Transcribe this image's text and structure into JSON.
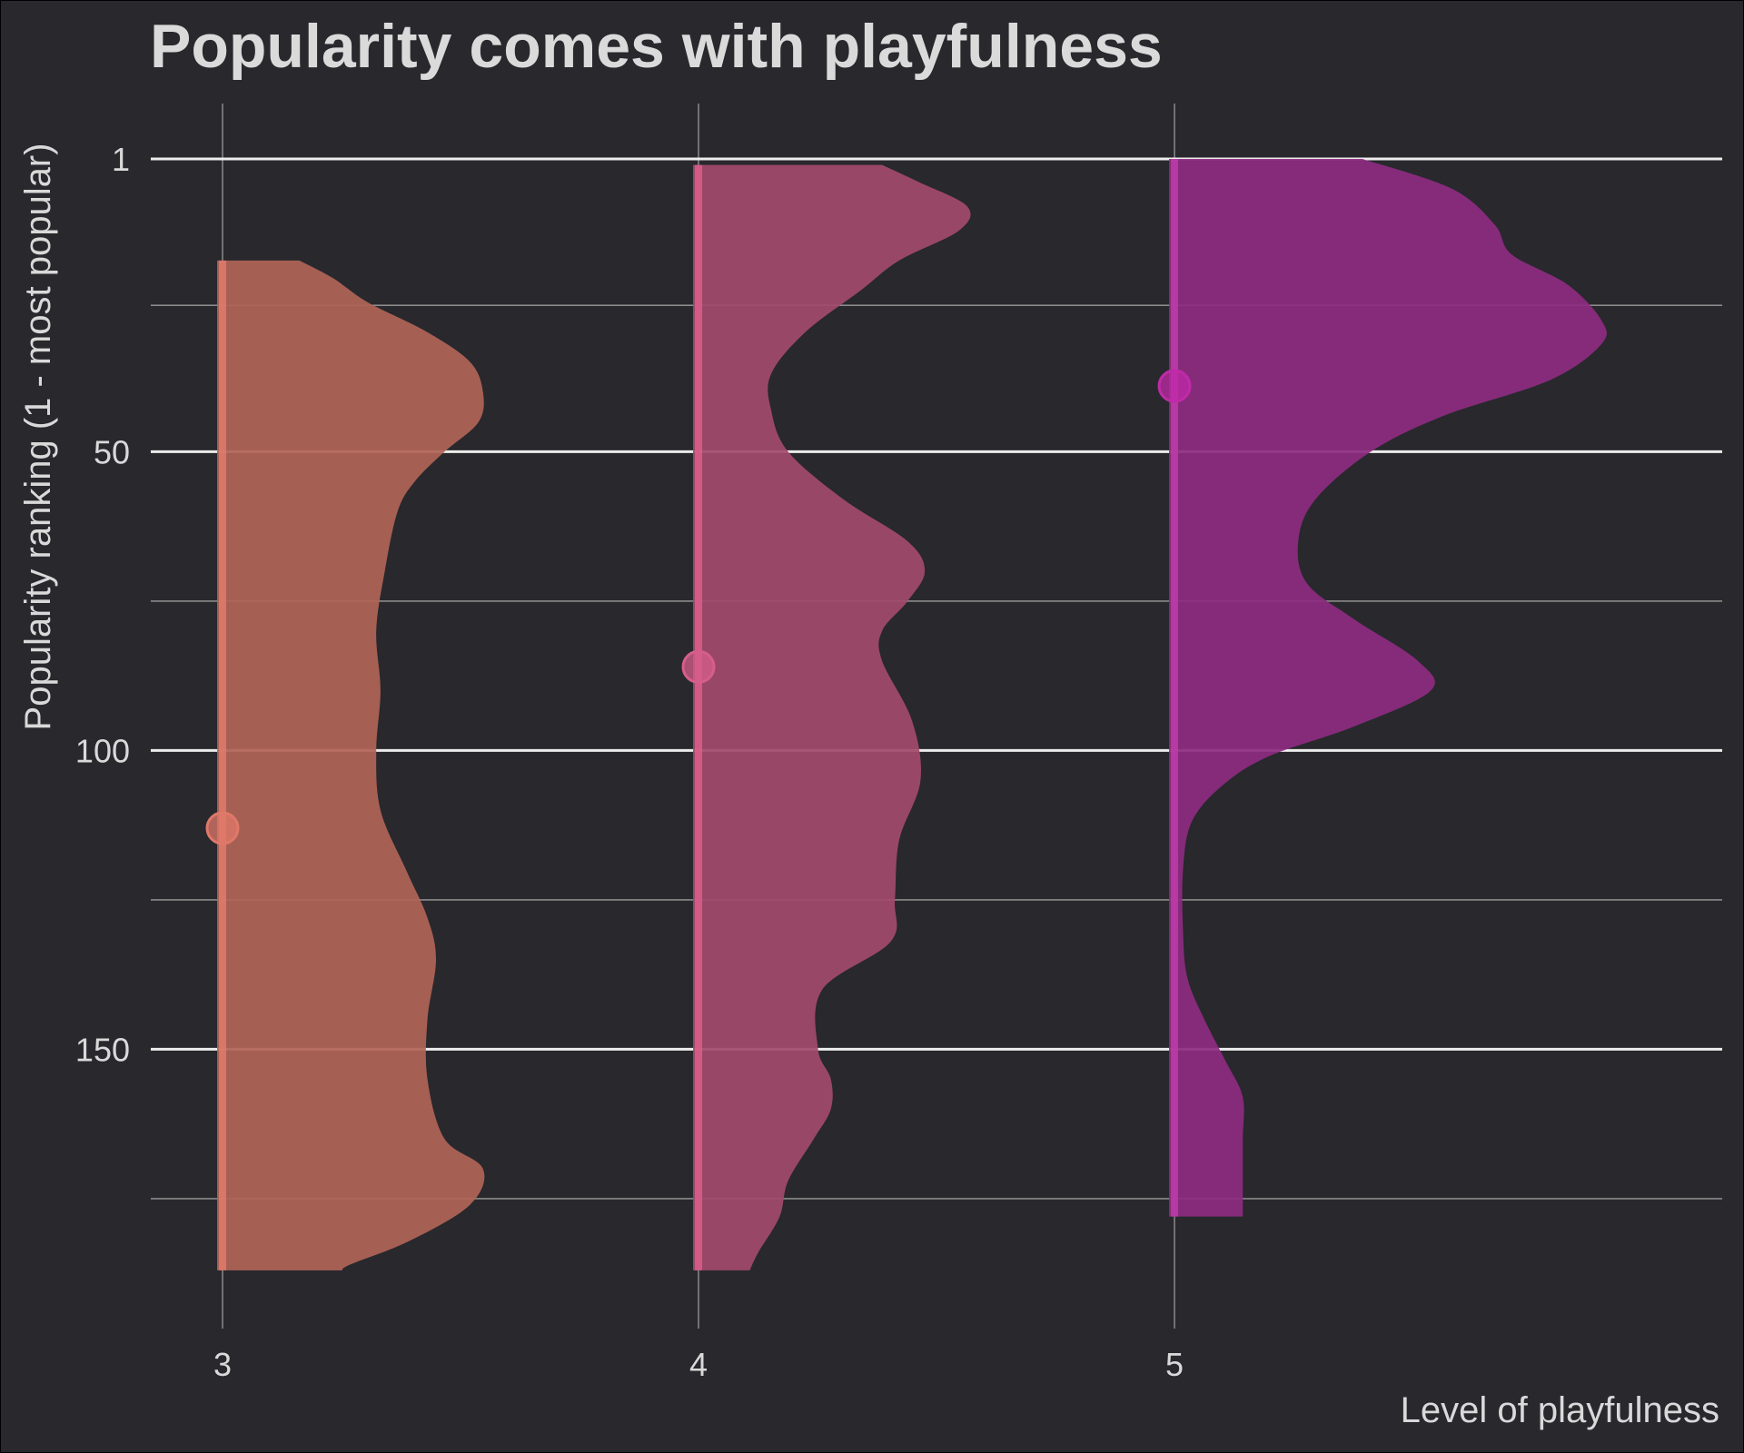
{
  "chart_data": {
    "type": "violin",
    "title": "Popularity comes with playfulness",
    "xlabel": "Level of playfulness",
    "ylabel": "Popularity ranking (1 - most popular)",
    "y_reversed": true,
    "ylim": [
      1,
      187
    ],
    "y_ticks": [
      "1",
      "50",
      "100",
      "150"
    ],
    "y_minor_ticks": [
      25.5,
      75,
      125,
      175
    ],
    "grid": true,
    "categories": [
      "3",
      "4",
      "5"
    ],
    "colors": [
      "#b06456",
      "#a24a6c",
      "#8d2c80"
    ],
    "line_colors": [
      "#e57d6d",
      "#e0608c",
      "#c33cad"
    ],
    "point_colors": [
      "#e0786a",
      "#d65e8a",
      "#c02aa8"
    ],
    "series": [
      {
        "name": "3",
        "mean_rank": 113,
        "range": [
          18,
          187
        ],
        "width_profile": [
          [
            18,
            0.18
          ],
          [
            21,
            0.26
          ],
          [
            25,
            0.34
          ],
          [
            30,
            0.48
          ],
          [
            35,
            0.58
          ],
          [
            40,
            0.61
          ],
          [
            45,
            0.6
          ],
          [
            50,
            0.52
          ],
          [
            55,
            0.45
          ],
          [
            60,
            0.41
          ],
          [
            70,
            0.38
          ],
          [
            80,
            0.36
          ],
          [
            90,
            0.37
          ],
          [
            100,
            0.36
          ],
          [
            110,
            0.37
          ],
          [
            120,
            0.43
          ],
          [
            128,
            0.48
          ],
          [
            135,
            0.5
          ],
          [
            145,
            0.48
          ],
          [
            155,
            0.48
          ],
          [
            165,
            0.52
          ],
          [
            170,
            0.61
          ],
          [
            176,
            0.58
          ],
          [
            182,
            0.44
          ],
          [
            186,
            0.3
          ],
          [
            187,
            0.28
          ]
        ]
      },
      {
        "name": "4",
        "mean_rank": 86,
        "range": [
          2,
          187
        ],
        "width_profile": [
          [
            2,
            0.43
          ],
          [
            5,
            0.52
          ],
          [
            9,
            0.63
          ],
          [
            13,
            0.61
          ],
          [
            18,
            0.47
          ],
          [
            23,
            0.38
          ],
          [
            30,
            0.25
          ],
          [
            37,
            0.17
          ],
          [
            43,
            0.17
          ],
          [
            50,
            0.21
          ],
          [
            58,
            0.34
          ],
          [
            65,
            0.49
          ],
          [
            70,
            0.53
          ],
          [
            75,
            0.49
          ],
          [
            80,
            0.43
          ],
          [
            85,
            0.43
          ],
          [
            95,
            0.5
          ],
          [
            105,
            0.52
          ],
          [
            115,
            0.47
          ],
          [
            125,
            0.46
          ],
          [
            132,
            0.45
          ],
          [
            140,
            0.29
          ],
          [
            150,
            0.28
          ],
          [
            155,
            0.31
          ],
          [
            160,
            0.31
          ],
          [
            165,
            0.27
          ],
          [
            172,
            0.21
          ],
          [
            178,
            0.19
          ],
          [
            184,
            0.14
          ],
          [
            187,
            0.12
          ]
        ]
      },
      {
        "name": "5",
        "mean_rank": 39,
        "range": [
          1,
          178
        ],
        "width_profile": [
          [
            1,
            0.44
          ],
          [
            6,
            0.65
          ],
          [
            12,
            0.75
          ],
          [
            17,
            0.79
          ],
          [
            22,
            0.92
          ],
          [
            28,
            1.0
          ],
          [
            32,
            1.0
          ],
          [
            38,
            0.88
          ],
          [
            44,
            0.63
          ],
          [
            50,
            0.46
          ],
          [
            58,
            0.33
          ],
          [
            65,
            0.29
          ],
          [
            72,
            0.31
          ],
          [
            78,
            0.42
          ],
          [
            85,
            0.57
          ],
          [
            90,
            0.6
          ],
          [
            96,
            0.42
          ],
          [
            101,
            0.22
          ],
          [
            106,
            0.11
          ],
          [
            112,
            0.04
          ],
          [
            120,
            0.02
          ],
          [
            130,
            0.02
          ],
          [
            138,
            0.03
          ],
          [
            145,
            0.07
          ],
          [
            152,
            0.12
          ],
          [
            158,
            0.16
          ],
          [
            165,
            0.16
          ],
          [
            172,
            0.16
          ],
          [
            178,
            0.16
          ]
        ]
      }
    ]
  }
}
